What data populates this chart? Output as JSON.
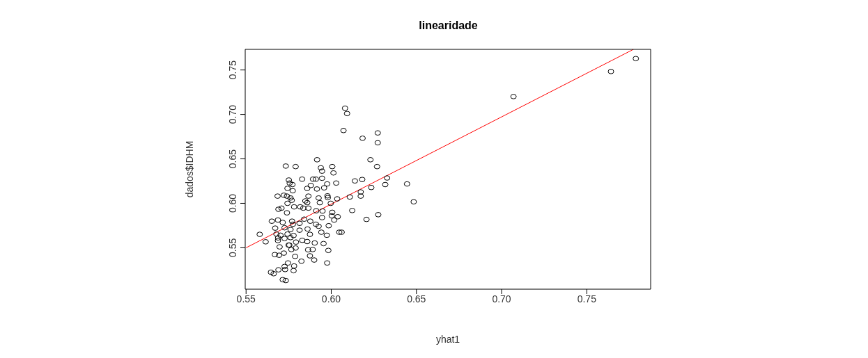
{
  "chart_data": {
    "type": "scatter",
    "title": "linearidade",
    "xlabel": "yhat1",
    "ylabel": "dados$IDHM",
    "xlim": [
      0.5495,
      0.7875
    ],
    "ylim": [
      0.5034,
      0.7732
    ],
    "xticks": [
      {
        "value": 0.55,
        "label": "0.55"
      },
      {
        "value": 0.6,
        "label": "0.60"
      },
      {
        "value": 0.65,
        "label": "0.65"
      },
      {
        "value": 0.7,
        "label": "0.70"
      },
      {
        "value": 0.75,
        "label": "0.75"
      }
    ],
    "yticks": [
      {
        "value": 0.55,
        "label": "0.55"
      },
      {
        "value": 0.6,
        "label": "0.60"
      },
      {
        "value": 0.65,
        "label": "0.65"
      },
      {
        "value": 0.7,
        "label": "0.70"
      },
      {
        "value": 0.75,
        "label": "0.75"
      }
    ],
    "series": [
      {
        "marker": "circle",
        "color": "#000000",
        "x": [
          0.7788,
          0.7642,
          0.707,
          0.6081,
          0.6093,
          0.6072,
          0.6184,
          0.6273,
          0.6273,
          0.623,
          0.6269,
          0.5917,
          0.5733,
          0.5791,
          0.6006,
          0.5939,
          0.5946,
          0.6013,
          0.5829,
          0.5751,
          0.5893,
          0.591,
          0.5946,
          0.6139,
          0.6182,
          0.6328,
          0.6029,
          0.5976,
          0.6317,
          0.6445,
          0.6235,
          0.5756,
          0.5772,
          0.5743,
          0.5859,
          0.5916,
          0.5958,
          0.588,
          0.6173,
          0.6173,
          0.6109,
          0.6035,
          0.5978,
          0.598,
          0.5926,
          0.5866,
          0.5774,
          0.5685,
          0.5722,
          0.574,
          0.5761,
          0.5997,
          0.6484,
          0.5848,
          0.5859,
          0.5933,
          0.5743,
          0.5768,
          0.6123,
          0.6006,
          0.5949,
          0.5912,
          0.569,
          0.5708,
          0.5782,
          0.5818,
          0.5836,
          0.5866,
          0.6003,
          0.6038,
          0.6017,
          0.5946,
          0.6207,
          0.6276,
          0.5651,
          0.5687,
          0.5715,
          0.577,
          0.5814,
          0.5841,
          0.5877,
          0.591,
          0.5926,
          0.5671,
          0.5726,
          0.5761,
          0.5814,
          0.5861,
          0.5942,
          0.6047,
          0.6061,
          0.558,
          0.5678,
          0.5702,
          0.5743,
          0.5779,
          0.5875,
          0.5974,
          0.5615,
          0.5687,
          0.5726,
          0.583,
          0.5859,
          0.5955,
          0.5697,
          0.575,
          0.5766,
          0.5791,
          0.5864,
          0.5891,
          0.5983,
          0.5669,
          0.5694,
          0.5722,
          0.5788,
          0.5875,
          0.5746,
          0.5825,
          0.59,
          0.5976,
          0.5726,
          0.5782,
          0.569,
          0.5729,
          0.5779,
          0.5646,
          0.5662,
          0.5715,
          0.5733,
          0.5688,
          0.5761,
          0.5793,
          0.574,
          0.5775,
          0.5754,
          0.5903,
          0.5985
        ],
        "values": [
          0.7628,
          0.7483,
          0.7201,
          0.707,
          0.701,
          0.6819,
          0.6732,
          0.6792,
          0.6681,
          0.649,
          0.6413,
          0.649,
          0.6419,
          0.6413,
          0.6413,
          0.6399,
          0.6362,
          0.6342,
          0.6272,
          0.6262,
          0.6272,
          0.6272,
          0.6282,
          0.6252,
          0.6268,
          0.6285,
          0.6228,
          0.6218,
          0.6211,
          0.6218,
          0.6178,
          0.6228,
          0.6211,
          0.6168,
          0.6168,
          0.6161,
          0.6174,
          0.6201,
          0.6128,
          0.6081,
          0.6071,
          0.605,
          0.6084,
          0.6064,
          0.606,
          0.6081,
          0.6141,
          0.6081,
          0.6091,
          0.6081,
          0.606,
          0.6,
          0.6017,
          0.6027,
          0.6007,
          0.6007,
          0.6,
          0.6034,
          0.5919,
          0.5899,
          0.5913,
          0.5916,
          0.5933,
          0.5946,
          0.596,
          0.596,
          0.5946,
          0.5946,
          0.5859,
          0.5849,
          0.5812,
          0.5839,
          0.5819,
          0.5872,
          0.5799,
          0.5812,
          0.5785,
          0.5799,
          0.5775,
          0.5822,
          0.5799,
          0.5765,
          0.5742,
          0.5721,
          0.5725,
          0.5705,
          0.5698,
          0.5711,
          0.5675,
          0.5675,
          0.5675,
          0.5651,
          0.5654,
          0.5641,
          0.5654,
          0.5638,
          0.5651,
          0.5641,
          0.5567,
          0.5581,
          0.5604,
          0.5584,
          0.557,
          0.5547,
          0.551,
          0.553,
          0.548,
          0.5497,
          0.5477,
          0.548,
          0.547,
          0.5423,
          0.5416,
          0.544,
          0.5403,
          0.5409,
          0.5329,
          0.5349,
          0.5362,
          0.5329,
          0.5289,
          0.5295,
          0.5252,
          0.5255,
          0.5242,
          0.5225,
          0.5208,
          0.5141,
          0.5131,
          0.5611,
          0.5614,
          0.5564,
          0.5893,
          0.5765,
          0.553,
          0.5554,
          0.5748
        ]
      },
      {
        "type": "line",
        "color": "#ff0000",
        "x": [
          0.55,
          0.7774
        ],
        "values": [
          0.55,
          0.7732
        ]
      }
    ]
  }
}
